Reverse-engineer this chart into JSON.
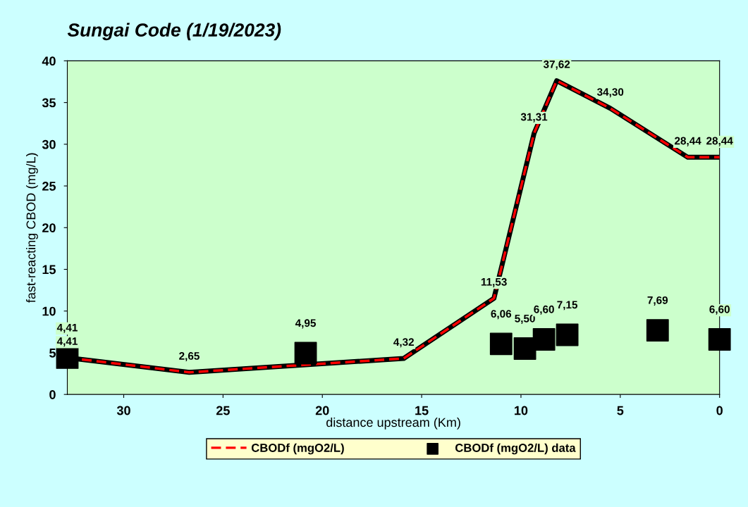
{
  "chart_data": {
    "type": "line",
    "title": "Sungai Code (1/19/2023)",
    "xlabel": "distance upstream (Km)",
    "ylabel": "fast-reacting CBOD (mg/L)",
    "xlim": [
      32.84,
      0
    ],
    "xticks": [
      30,
      25,
      20,
      15,
      10,
      5,
      0
    ],
    "ylim": [
      0,
      40
    ],
    "yticks": [
      0,
      5,
      10,
      15,
      20,
      25,
      30,
      35,
      40
    ],
    "grid": false,
    "legend": "bottom",
    "series": [
      {
        "name": "CBODf (mgO2/L)",
        "color": "#ff0000",
        "line_style": "dashed",
        "marker": "none",
        "x": [
          32.84,
          26.7,
          15.9,
          11.36,
          9.34,
          8.2,
          5.5,
          1.6,
          0
        ],
        "values": [
          4.41,
          2.65,
          4.32,
          11.53,
          31.31,
          37.62,
          34.3,
          28.44,
          28.44
        ],
        "value_labels": [
          "4,41",
          "2,65",
          "4,32",
          "11,53",
          "31,31",
          "37,62",
          "34,30",
          "28,44",
          "28,44"
        ]
      },
      {
        "name": "CBODf (mgO2/L) data",
        "type": "scatter",
        "color": "#000000",
        "marker": "square",
        "x": [
          32.84,
          20.84,
          11.0,
          9.8,
          8.84,
          7.67,
          3.12,
          0
        ],
        "values": [
          4.41,
          4.95,
          6.06,
          5.5,
          6.6,
          7.15,
          7.69,
          6.6
        ],
        "value_labels": [
          "4,41",
          "4,95",
          "6,06",
          "5,50",
          "6,60",
          "7,15",
          "7,69",
          "6,60"
        ]
      }
    ]
  }
}
